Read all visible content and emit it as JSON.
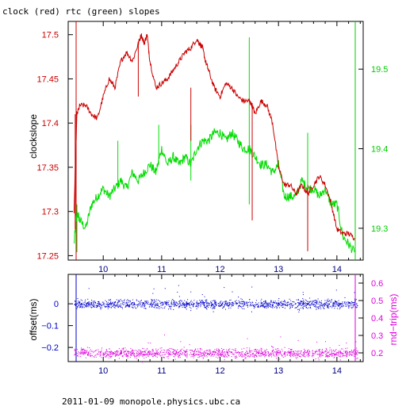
{
  "title": "clock (red) rtc (green) slopes",
  "footer": "2011-01-09  monopole.physics.ubc.ca",
  "colors": {
    "clock": "#cc0000",
    "rtc": "#00dd00",
    "offset": "#0000cc",
    "rndtrip": "#dd00dd",
    "axis": "#000000"
  },
  "chart_data": [
    {
      "type": "line",
      "ylabel": "clockslope",
      "xlim": [
        9.4,
        14.45
      ],
      "ylim": [
        17.245,
        17.515
      ],
      "y2lim": [
        19.26,
        19.56
      ],
      "x_ticks": [
        "10",
        "11",
        "12",
        "13",
        "14"
      ],
      "x_tick_values": [
        10,
        11,
        12,
        13,
        14
      ],
      "y_ticks": [
        "17.25",
        "17.3",
        "17.35",
        "17.4",
        "17.45",
        "17.5"
      ],
      "y_tick_values": [
        17.25,
        17.3,
        17.35,
        17.4,
        17.45,
        17.5
      ],
      "y2_ticks": [
        "19.3",
        "19.4",
        "19.5"
      ],
      "y2_tick_values": [
        19.3,
        19.4,
        19.5
      ],
      "series": [
        {
          "axis": "left",
          "x": [
            9.5,
            9.55,
            9.6,
            9.7,
            9.8,
            9.9,
            10.0,
            10.1,
            10.2,
            10.3,
            10.4,
            10.5,
            10.6,
            10.65,
            10.7,
            10.75,
            10.8,
            10.9,
            11.0,
            11.1,
            11.2,
            11.3,
            11.4,
            11.5,
            11.6,
            11.65,
            11.7,
            11.75,
            11.8,
            11.9,
            12.0,
            12.1,
            12.2,
            12.3,
            12.4,
            12.5,
            12.55,
            12.6,
            12.7,
            12.8,
            12.9,
            13.0,
            13.1,
            13.2,
            13.3,
            13.4,
            13.5,
            13.6,
            13.7,
            13.8,
            13.9,
            14.0,
            14.1,
            14.2,
            14.3
          ],
          "values": [
            17.3,
            17.41,
            17.42,
            17.42,
            17.41,
            17.405,
            17.43,
            17.45,
            17.44,
            17.47,
            17.48,
            17.47,
            17.49,
            17.5,
            17.49,
            17.5,
            17.47,
            17.44,
            17.445,
            17.45,
            17.46,
            17.47,
            17.48,
            17.485,
            17.495,
            17.49,
            17.485,
            17.47,
            17.46,
            17.44,
            17.43,
            17.445,
            17.44,
            17.43,
            17.425,
            17.425,
            17.42,
            17.41,
            17.425,
            17.42,
            17.4,
            17.35,
            17.33,
            17.33,
            17.32,
            17.33,
            17.32,
            17.33,
            17.34,
            17.33,
            17.31,
            17.28,
            17.275,
            17.275,
            17.27
          ]
        },
        {
          "axis": "right",
          "x": [
            9.5,
            9.55,
            9.6,
            9.7,
            9.8,
            9.9,
            10.0,
            10.1,
            10.2,
            10.3,
            10.4,
            10.5,
            10.6,
            10.7,
            10.8,
            10.9,
            11.0,
            11.1,
            11.2,
            11.3,
            11.4,
            11.5,
            11.6,
            11.7,
            11.8,
            11.9,
            12.0,
            12.1,
            12.2,
            12.3,
            12.4,
            12.5,
            12.6,
            12.7,
            12.8,
            12.9,
            13.0,
            13.1,
            13.2,
            13.3,
            13.4,
            13.5,
            13.6,
            13.7,
            13.8,
            13.9,
            14.0,
            14.1,
            14.2,
            14.3
          ],
          "values": [
            19.28,
            19.32,
            19.31,
            19.3,
            19.33,
            19.34,
            19.35,
            19.34,
            19.35,
            19.36,
            19.35,
            19.37,
            19.36,
            19.37,
            19.38,
            19.37,
            19.4,
            19.38,
            19.39,
            19.38,
            19.39,
            19.38,
            19.4,
            19.41,
            19.41,
            19.42,
            19.42,
            19.41,
            19.42,
            19.41,
            19.4,
            19.4,
            19.39,
            19.38,
            19.38,
            19.37,
            19.38,
            19.34,
            19.34,
            19.34,
            19.36,
            19.35,
            19.35,
            19.34,
            19.35,
            19.33,
            19.33,
            19.29,
            19.28,
            19.27
          ]
        }
      ]
    },
    {
      "type": "scatter",
      "ylabel": "offset(ms)",
      "y2label": "rnd−trip(ms)",
      "xlim": [
        9.4,
        14.45
      ],
      "ylim": [
        -0.265,
        0.135
      ],
      "y2lim": [
        0.15,
        0.65
      ],
      "x_ticks": [
        "10",
        "11",
        "12",
        "13",
        "14"
      ],
      "x_tick_values": [
        10,
        11,
        12,
        13,
        14
      ],
      "y_ticks": [
        "0",
        "−0.1",
        "−0.2"
      ],
      "y_tick_values": [
        0,
        -0.1,
        -0.2
      ],
      "y2_ticks": [
        "0.2",
        "0.3",
        "0.4",
        "0.5",
        "0.6"
      ],
      "y2_tick_values": [
        0.2,
        0.3,
        0.4,
        0.5,
        0.6
      ],
      "series": [
        {
          "axis": "left",
          "x_range": [
            9.5,
            14.35
          ],
          "center": 0.0
        },
        {
          "axis": "right",
          "x_range": [
            9.5,
            14.35
          ],
          "center": 0.2
        }
      ]
    }
  ]
}
